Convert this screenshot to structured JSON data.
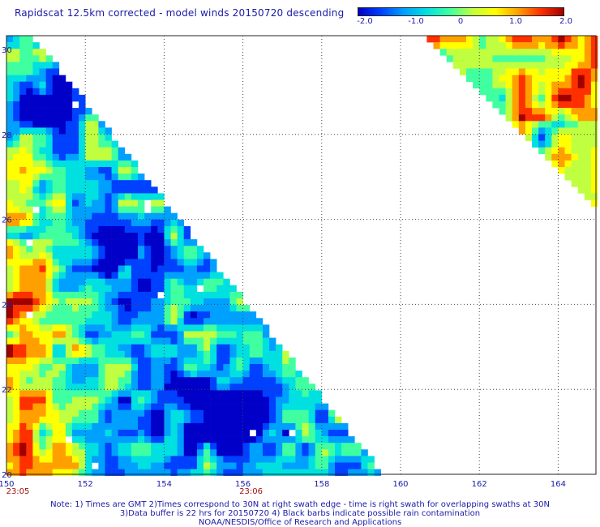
{
  "title": "Rapidscat 12.5km corrected - model winds 20150720 descending",
  "colorbar": {
    "ticks": [
      "-2.0",
      "-1.0",
      "0",
      "1.0",
      "2.0"
    ],
    "tick_values": [
      -2.0,
      -1.0,
      0,
      1.0,
      2.0
    ],
    "colors": [
      "#0000c8",
      "#0040ff",
      "#00a0ff",
      "#00e0e0",
      "#40ffa0",
      "#c0ff40",
      "#ffff00",
      "#ffa000",
      "#ff3000",
      "#a00000"
    ]
  },
  "map": {
    "lon_ticks": [
      "150",
      "152",
      "154",
      "156",
      "158",
      "160",
      "162",
      "164"
    ],
    "lat_ticks": [
      "30",
      "28",
      "26",
      "24",
      "22",
      "20"
    ],
    "lon_range": [
      150,
      165
    ],
    "lat_range": [
      20,
      30
    ],
    "grid": true
  },
  "times": [
    {
      "label": "23:05",
      "lon": 150
    },
    {
      "label": "23:06",
      "lon": 156
    }
  ],
  "notes": [
    "Note: 1) Times are GMT 2)Times correspond to 30N at right swath edge - time is right swath for overlapping swaths at 30N",
    "3)Data buffer is 22 hrs for 20150720 4) Black barbs indicate possible rain contamination",
    "NOAA/NESDIS/Office of Research and Applications"
  ]
}
